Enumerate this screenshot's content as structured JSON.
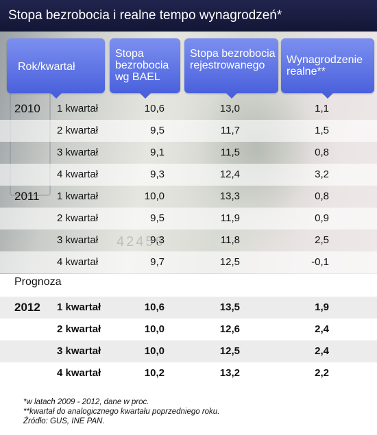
{
  "title": "Stopa bezrobocia i realne tempo wynagrodzeń*",
  "headers": {
    "period": "Rok/kwartał",
    "bael": "Stopa bezrobocia wg BAEL",
    "registered": "Stopa bezrobocia rejestrowanego",
    "wages": "Wynagrodzenie realne**"
  },
  "rows_2010": [
    {
      "year": "2010",
      "quarter": "1 kwartał",
      "bael": "10,6",
      "registered": "13,0",
      "wages": "1,1"
    },
    {
      "year": "",
      "quarter": "2 kwartał",
      "bael": "9,5",
      "registered": "11,7",
      "wages": "1,5"
    },
    {
      "year": "",
      "quarter": "3 kwartał",
      "bael": "9,1",
      "registered": "11,5",
      "wages": "0,8"
    },
    {
      "year": "",
      "quarter": "4 kwartał",
      "bael": "9,3",
      "registered": "12,4",
      "wages": "3,2"
    }
  ],
  "rows_2011": [
    {
      "year": "2011",
      "quarter": "1 kwartał",
      "bael": "10,0",
      "registered": "13,3",
      "wages": "0,8"
    },
    {
      "year": "",
      "quarter": "2 kwartał",
      "bael": "9,5",
      "registered": "11,9",
      "wages": "0,9"
    },
    {
      "year": "",
      "quarter": "3 kwartał",
      "bael": "9,3",
      "registered": "11,8",
      "wages": "2,5"
    },
    {
      "year": "",
      "quarter": "4 kwartał",
      "bael": "9,7",
      "registered": "12,5",
      "wages": "-0,1"
    }
  ],
  "prognoza_label": "Prognoza",
  "rows_2012": [
    {
      "year": "2012",
      "quarter": "1 kwartał",
      "bael": "10,6",
      "registered": "13,5",
      "wages": "1,9"
    },
    {
      "year": "",
      "quarter": "2 kwartał",
      "bael": "10,0",
      "registered": "12,6",
      "wages": "2,4"
    },
    {
      "year": "",
      "quarter": "3 kwartał",
      "bael": "10,0",
      "registered": "12,5",
      "wages": "2,4"
    },
    {
      "year": "",
      "quarter": "4 kwartał",
      "bael": "10,2",
      "registered": "13,2",
      "wages": "2,2"
    }
  ],
  "banknote_serial": "42456",
  "footnotes": [
    "*w latach 2009 - 2012, dane w proc.",
    "**kwartał do analogicznego kwartału poprzedniego roku.",
    "Źródło: GUS, INE PAN."
  ]
}
